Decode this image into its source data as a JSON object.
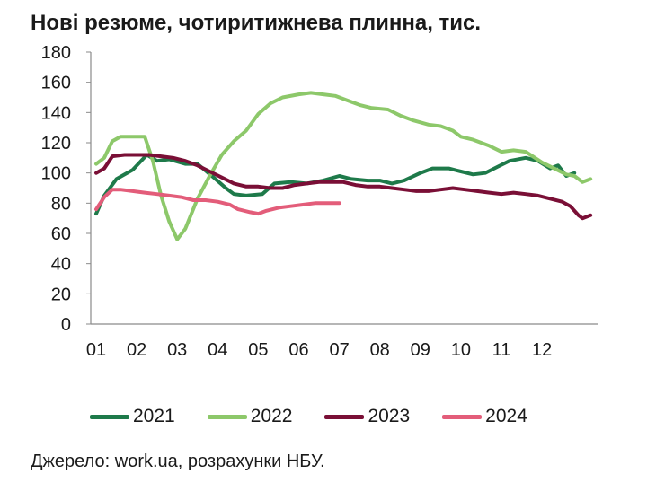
{
  "title": "Нові резюме, чотиритижнева плинна, тис.",
  "source": "Джерело: work.ua, розрахунки НБУ.",
  "chart_data": {
    "type": "line",
    "title": "Нові резюме, чотиритижнева плинна, тис.",
    "xlabel": "",
    "ylabel": "",
    "ylim": [
      0,
      180
    ],
    "yticks": [
      "0",
      "20",
      "40",
      "60",
      "80",
      "100",
      "120",
      "140",
      "160",
      "180"
    ],
    "xticks": [
      "01",
      "02",
      "03",
      "04",
      "05",
      "06",
      "07",
      "08",
      "09",
      "10",
      "11",
      "12"
    ],
    "grid": false,
    "legend": "bottom",
    "series": [
      {
        "name": "2021",
        "color": "#1e7a4a",
        "points": [
          [
            1.0,
            73
          ],
          [
            1.2,
            85
          ],
          [
            1.5,
            96
          ],
          [
            1.9,
            102
          ],
          [
            2.25,
            112
          ],
          [
            2.5,
            108
          ],
          [
            2.8,
            109
          ],
          [
            3.2,
            106
          ],
          [
            3.5,
            106
          ],
          [
            3.9,
            97
          ],
          [
            4.2,
            90
          ],
          [
            4.4,
            86
          ],
          [
            4.7,
            85
          ],
          [
            5.1,
            86
          ],
          [
            5.4,
            93
          ],
          [
            5.8,
            94
          ],
          [
            6.2,
            93
          ],
          [
            6.6,
            95
          ],
          [
            7.0,
            98
          ],
          [
            7.3,
            96
          ],
          [
            7.7,
            95
          ],
          [
            8.0,
            95
          ],
          [
            8.3,
            93
          ],
          [
            8.6,
            95
          ],
          [
            9.0,
            100
          ],
          [
            9.3,
            103
          ],
          [
            9.7,
            103
          ],
          [
            10.0,
            101
          ],
          [
            10.3,
            99
          ],
          [
            10.6,
            100
          ],
          [
            10.9,
            104
          ],
          [
            11.2,
            108
          ],
          [
            11.6,
            110
          ],
          [
            11.9,
            108
          ],
          [
            12.2,
            103
          ],
          [
            12.4,
            105
          ],
          [
            12.6,
            98
          ],
          [
            12.8,
            100
          ]
        ]
      },
      {
        "name": "2022",
        "color": "#8dc86a",
        "points": [
          [
            1.0,
            106
          ],
          [
            1.2,
            110
          ],
          [
            1.4,
            121
          ],
          [
            1.6,
            124
          ],
          [
            1.9,
            124
          ],
          [
            2.2,
            124
          ],
          [
            2.4,
            108
          ],
          [
            2.6,
            85
          ],
          [
            2.8,
            68
          ],
          [
            3.0,
            56
          ],
          [
            3.2,
            63
          ],
          [
            3.5,
            83
          ],
          [
            3.8,
            98
          ],
          [
            4.1,
            112
          ],
          [
            4.4,
            121
          ],
          [
            4.7,
            128
          ],
          [
            5.0,
            139
          ],
          [
            5.3,
            146
          ],
          [
            5.6,
            150
          ],
          [
            6.0,
            152
          ],
          [
            6.3,
            153
          ],
          [
            6.6,
            152
          ],
          [
            6.9,
            151
          ],
          [
            7.2,
            148
          ],
          [
            7.5,
            145
          ],
          [
            7.8,
            143
          ],
          [
            8.2,
            142
          ],
          [
            8.5,
            138
          ],
          [
            8.8,
            135
          ],
          [
            9.2,
            132
          ],
          [
            9.5,
            131
          ],
          [
            9.8,
            128
          ],
          [
            10.0,
            124
          ],
          [
            10.3,
            122
          ],
          [
            10.7,
            118
          ],
          [
            11.0,
            114
          ],
          [
            11.3,
            115
          ],
          [
            11.6,
            114
          ],
          [
            12.0,
            107
          ],
          [
            12.3,
            103
          ],
          [
            12.6,
            99
          ],
          [
            12.8,
            98
          ],
          [
            13.0,
            94
          ],
          [
            13.2,
            96
          ]
        ]
      },
      {
        "name": "2023",
        "color": "#7a0f36",
        "points": [
          [
            1.0,
            100
          ],
          [
            1.2,
            103
          ],
          [
            1.4,
            111
          ],
          [
            1.7,
            112
          ],
          [
            2.0,
            112
          ],
          [
            2.3,
            112
          ],
          [
            2.6,
            111
          ],
          [
            2.9,
            110
          ],
          [
            3.2,
            108
          ],
          [
            3.5,
            105
          ],
          [
            3.8,
            101
          ],
          [
            4.1,
            97
          ],
          [
            4.4,
            93
          ],
          [
            4.7,
            91
          ],
          [
            5.0,
            91
          ],
          [
            5.3,
            90
          ],
          [
            5.6,
            90
          ],
          [
            5.9,
            92
          ],
          [
            6.2,
            93
          ],
          [
            6.5,
            94
          ],
          [
            6.8,
            94
          ],
          [
            7.1,
            94
          ],
          [
            7.4,
            92
          ],
          [
            7.7,
            91
          ],
          [
            8.0,
            91
          ],
          [
            8.3,
            90
          ],
          [
            8.6,
            89
          ],
          [
            8.9,
            88
          ],
          [
            9.2,
            88
          ],
          [
            9.5,
            89
          ],
          [
            9.8,
            90
          ],
          [
            10.1,
            89
          ],
          [
            10.4,
            88
          ],
          [
            10.7,
            87
          ],
          [
            11.0,
            86
          ],
          [
            11.3,
            87
          ],
          [
            11.6,
            86
          ],
          [
            11.9,
            85
          ],
          [
            12.2,
            83
          ],
          [
            12.5,
            81
          ],
          [
            12.7,
            78
          ],
          [
            12.9,
            72
          ],
          [
            13.0,
            70
          ],
          [
            13.2,
            72
          ]
        ]
      },
      {
        "name": "2024",
        "color": "#e35d7a",
        "points": [
          [
            1.0,
            76
          ],
          [
            1.2,
            84
          ],
          [
            1.4,
            89
          ],
          [
            1.6,
            89
          ],
          [
            1.9,
            88
          ],
          [
            2.2,
            87
          ],
          [
            2.5,
            86
          ],
          [
            2.8,
            85
          ],
          [
            3.1,
            84
          ],
          [
            3.4,
            82
          ],
          [
            3.7,
            82
          ],
          [
            4.0,
            81
          ],
          [
            4.3,
            79
          ],
          [
            4.5,
            76
          ],
          [
            4.8,
            74
          ],
          [
            5.0,
            73
          ],
          [
            5.2,
            75
          ],
          [
            5.5,
            77
          ],
          [
            5.8,
            78
          ],
          [
            6.1,
            79
          ],
          [
            6.4,
            80
          ],
          [
            6.7,
            80
          ],
          [
            7.0,
            80
          ]
        ]
      }
    ]
  }
}
